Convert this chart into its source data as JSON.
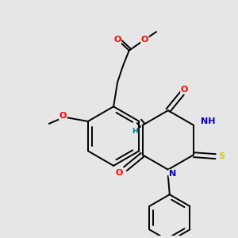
{
  "bg_color": "#e6e6e6",
  "bond_color": "#000000",
  "bond_width": 1.4,
  "atom_colors": {
    "O": "#ff0000",
    "N": "#0000bb",
    "S": "#cccc00",
    "H": "#008080",
    "C": "#000000"
  },
  "font_size": 8.0
}
